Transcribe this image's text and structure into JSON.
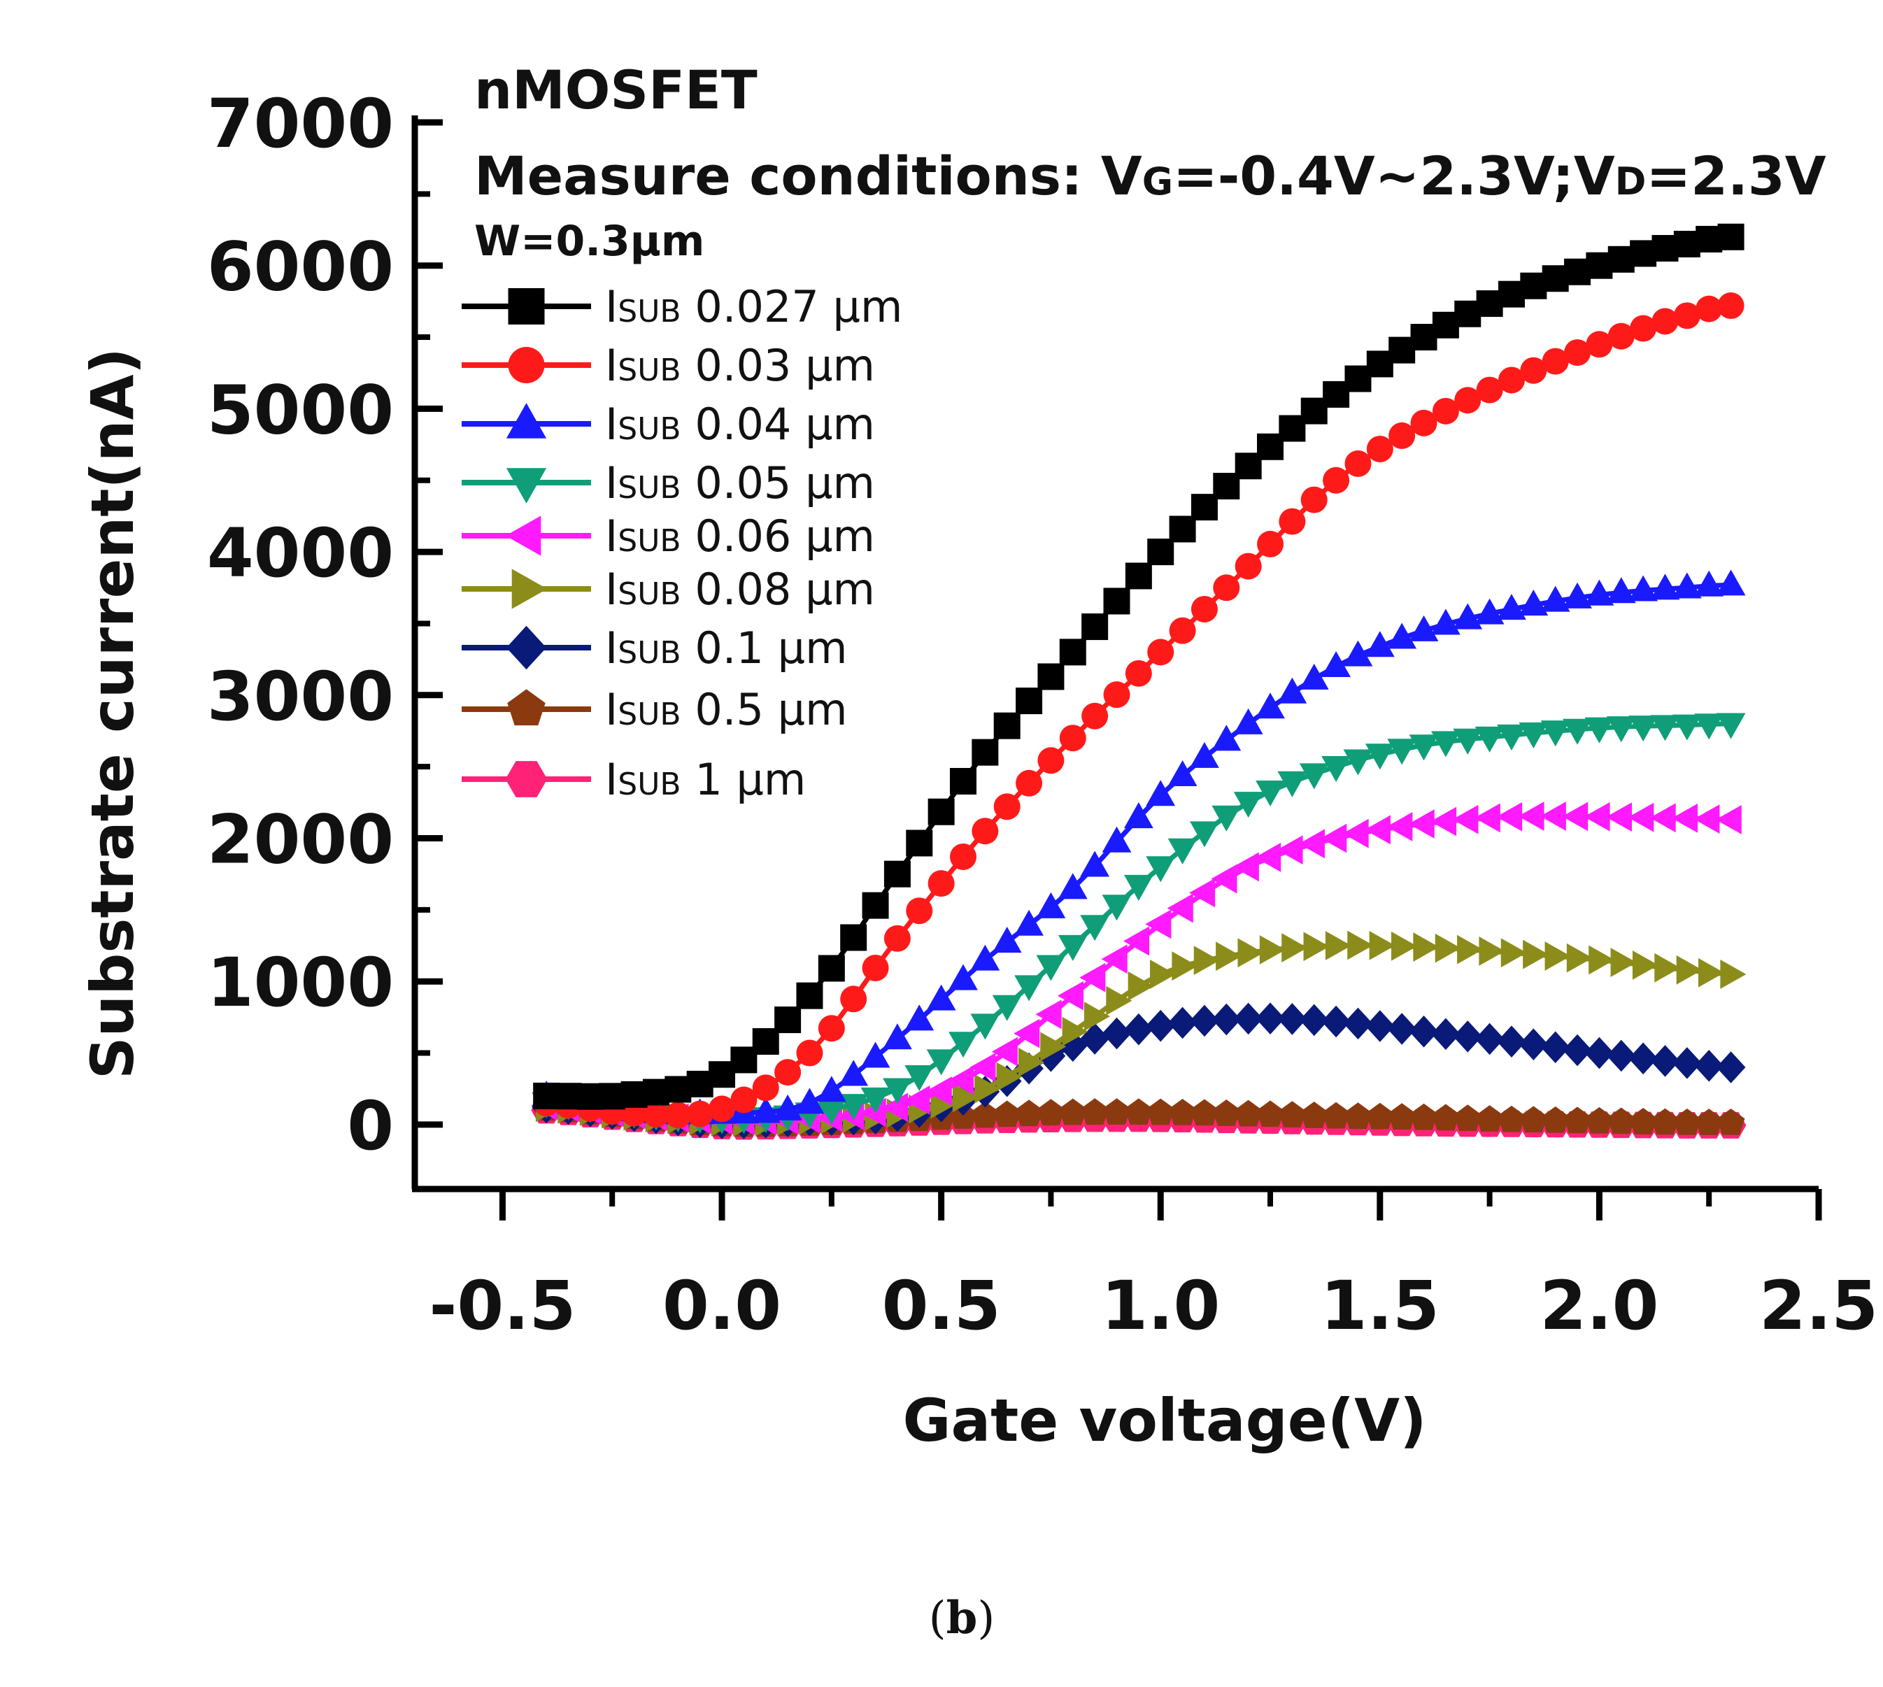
{
  "chart_data": {
    "type": "line",
    "title": "nMOSFET",
    "annotations": {
      "device": "nMOSFET",
      "conditions_prefix": "Measure conditions: V",
      "vg_sub": "G",
      "conditions_mid": "=-0.4V~2.3V;V",
      "vd_sub": "D",
      "conditions_suffix": "=2.3V",
      "width": "W=0.3μm"
    },
    "xlabel": "Gate voltage(V)",
    "ylabel": "Substrate current(nA)",
    "xlim": [
      -0.7,
      2.5
    ],
    "ylim": [
      -450,
      7000
    ],
    "xticks": [
      -0.5,
      0.0,
      0.5,
      1.0,
      1.5,
      2.0,
      2.5
    ],
    "xtick_labels": [
      "-0.5",
      "0.0",
      "0.5",
      "1.0",
      "1.5",
      "2.0",
      "2.5"
    ],
    "yticks": [
      0,
      1000,
      2000,
      3000,
      4000,
      5000,
      6000,
      7000
    ],
    "ytick_labels": [
      "0",
      "1000",
      "2000",
      "3000",
      "4000",
      "5000",
      "6000",
      "7000"
    ],
    "x_range": {
      "start": -0.4,
      "end": 2.3,
      "step": 0.05
    },
    "legend_position": "top-left",
    "series": [
      {
        "name": "ISUB 0.027 μm",
        "label_main": "I",
        "label_sub": "SUB",
        "label_rest": " 0.027 μm",
        "color": "#000000",
        "marker": "square",
        "x": [
          -0.4,
          -0.2,
          0.0,
          0.2,
          0.4,
          0.6,
          0.8,
          1.0,
          1.2,
          1.4,
          1.6,
          1.8,
          2.0,
          2.2,
          2.3
        ],
        "values": [
          200,
          210,
          350,
          900,
          1750,
          2600,
          3300,
          4000,
          4600,
          5100,
          5500,
          5800,
          6000,
          6150,
          6200
        ]
      },
      {
        "name": "ISUB 0.03 μm",
        "label_main": "I",
        "label_sub": "SUB",
        "label_rest": " 0.03 μm",
        "color": "#ff1a1a",
        "marker": "circle",
        "x": [
          -0.4,
          -0.2,
          0.0,
          0.2,
          0.4,
          0.6,
          0.8,
          1.0,
          1.2,
          1.4,
          1.6,
          1.8,
          2.0,
          2.2,
          2.3
        ],
        "values": [
          150,
          80,
          110,
          500,
          1300,
          2050,
          2700,
          3300,
          3900,
          4500,
          4900,
          5200,
          5450,
          5650,
          5720
        ]
      },
      {
        "name": "ISUB 0.04 μm",
        "label_main": "I",
        "label_sub": "SUB",
        "label_rest": " 0.04 μm",
        "color": "#1a1aff",
        "marker": "triangle-up",
        "x": [
          -0.4,
          -0.2,
          0.0,
          0.2,
          0.4,
          0.6,
          0.8,
          1.0,
          1.2,
          1.4,
          1.6,
          1.8,
          2.0,
          2.2,
          2.3
        ],
        "values": [
          200,
          100,
          80,
          150,
          600,
          1150,
          1650,
          2300,
          2800,
          3200,
          3450,
          3600,
          3700,
          3750,
          3770
        ]
      },
      {
        "name": "ISUB 0.05 μm",
        "label_main": "I",
        "label_sub": "SUB",
        "label_rest": " 0.05 μm",
        "color": "#0f9e78",
        "marker": "triangle-down",
        "x": [
          -0.4,
          -0.2,
          0.0,
          0.2,
          0.4,
          0.6,
          0.8,
          1.0,
          1.2,
          1.4,
          1.6,
          1.8,
          2.0,
          2.2,
          2.3
        ],
        "values": [
          150,
          80,
          40,
          80,
          250,
          700,
          1250,
          1800,
          2250,
          2500,
          2650,
          2720,
          2770,
          2790,
          2800
        ]
      },
      {
        "name": "ISUB 0.06 μm",
        "label_main": "I",
        "label_sub": "SUB",
        "label_rest": " 0.06 μm",
        "color": "#ff1aff",
        "marker": "triangle-left",
        "x": [
          -0.4,
          -0.2,
          0.0,
          0.2,
          0.4,
          0.6,
          0.8,
          1.0,
          1.2,
          1.4,
          1.6,
          1.8,
          2.0,
          2.2,
          2.3
        ],
        "values": [
          130,
          70,
          30,
          40,
          120,
          400,
          900,
          1400,
          1800,
          2000,
          2100,
          2150,
          2150,
          2140,
          2130
        ]
      },
      {
        "name": "ISUB 0.08 μm",
        "label_main": "I",
        "label_sub": "SUB",
        "label_rest": " 0.08 μm",
        "color": "#8c8c1a",
        "marker": "triangle-right",
        "x": [
          -0.4,
          -0.2,
          0.0,
          0.2,
          0.4,
          0.6,
          0.8,
          1.0,
          1.2,
          1.4,
          1.6,
          1.8,
          2.0,
          2.2,
          2.3
        ],
        "values": [
          120,
          60,
          20,
          30,
          80,
          250,
          650,
          1050,
          1200,
          1250,
          1240,
          1200,
          1150,
          1080,
          1050
        ]
      },
      {
        "name": "ISUB 0.1 μm",
        "label_main": "I",
        "label_sub": "SUB",
        "label_rest": " 0.1 μm",
        "color": "#0a1a78",
        "marker": "diamond",
        "x": [
          -0.4,
          -0.2,
          0.0,
          0.2,
          0.4,
          0.6,
          0.8,
          1.0,
          1.2,
          1.4,
          1.6,
          1.8,
          2.0,
          2.2,
          2.3
        ],
        "values": [
          120,
          60,
          10,
          30,
          60,
          230,
          550,
          690,
          740,
          720,
          650,
          580,
          500,
          430,
          400
        ]
      },
      {
        "name": "ISUB 0.5 μm",
        "label_main": "I",
        "label_sub": "SUB",
        "label_rest": " 0.5 μm",
        "color": "#8b3a0f",
        "marker": "pentagon",
        "x": [
          -0.4,
          -0.2,
          0.0,
          0.2,
          0.4,
          0.6,
          0.8,
          1.0,
          1.2,
          1.4,
          1.6,
          1.8,
          2.0,
          2.2,
          2.3
        ],
        "values": [
          110,
          50,
          0,
          5,
          30,
          60,
          80,
          80,
          70,
          55,
          45,
          30,
          20,
          10,
          10
        ]
      },
      {
        "name": "ISUB 1 μm",
        "label_main": "I",
        "label_sub": "SUB",
        "label_rest": " 1 μm",
        "color": "#ff2277",
        "marker": "hexagon",
        "x": [
          -0.4,
          -0.2,
          0.0,
          0.2,
          0.4,
          0.6,
          0.8,
          1.0,
          1.2,
          1.4,
          1.6,
          1.8,
          2.0,
          2.2,
          2.3
        ],
        "values": [
          100,
          40,
          -10,
          -5,
          10,
          30,
          40,
          40,
          30,
          20,
          10,
          5,
          0,
          -5,
          -5
        ]
      }
    ]
  },
  "caption": {
    "open": "(",
    "letter": "b",
    "close": ")"
  }
}
